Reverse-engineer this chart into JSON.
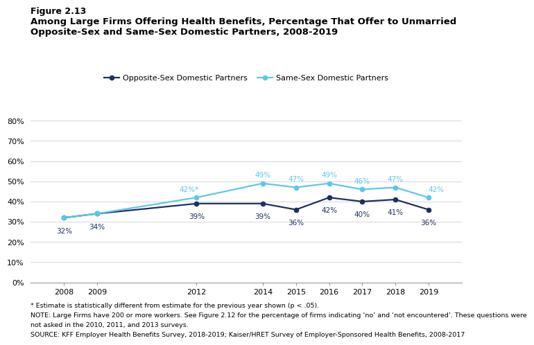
{
  "years": [
    2008,
    2009,
    2012,
    2014,
    2015,
    2016,
    2017,
    2018,
    2019
  ],
  "opposite_sex": [
    32,
    34,
    39,
    39,
    36,
    42,
    40,
    41,
    36
  ],
  "same_sex": [
    32,
    34,
    42,
    49,
    47,
    49,
    46,
    47,
    42
  ],
  "opposite_sex_labels": [
    "32%",
    "34%",
    "39%",
    "39%",
    "36%",
    "42%",
    "40%",
    "41%",
    "36%"
  ],
  "same_sex_labels": [
    "",
    "",
    "42%*",
    "49%",
    "47%",
    "49%",
    "46%",
    "47%",
    "42%"
  ],
  "opposite_color": "#1f3060",
  "same_sex_color": "#5bc8e8",
  "figure_label": "Figure 2.13",
  "title_line1": "Among Large Firms Offering Health Benefits, Percentage That Offer to Unmarried",
  "title_line2": "Opposite-Sex and Same-Sex Domestic Partners, 2008-2019",
  "legend_opposite": "Opposite-Sex Domestic Partners",
  "legend_same": "Same-Sex Domestic Partners",
  "ylim": [
    0,
    90
  ],
  "yticks": [
    0,
    10,
    20,
    30,
    40,
    50,
    60,
    70,
    80
  ],
  "ytick_labels": [
    "0%",
    "10%",
    "20%",
    "30%",
    "40%",
    "50%",
    "60%",
    "70%",
    "80%"
  ],
  "footnote1": "* Estimate is statistically different from estimate for the previous year shown (p < .05).",
  "footnote2": "NOTE: Large Firms have 200 or more workers. See Figure 2.12 for the percentage of firms indicating ‘no’ and ‘not encountered’. These questions were",
  "footnote3": "not asked in the 2010, 2011, and 2013 surveys.",
  "footnote4": "SOURCE: KFF Employer Health Benefits Survey, 2018-2019; Kaiser/HRET Survey of Employer-Sponsored Health Benefits, 2008-2017",
  "bg_color": "#ffffff"
}
